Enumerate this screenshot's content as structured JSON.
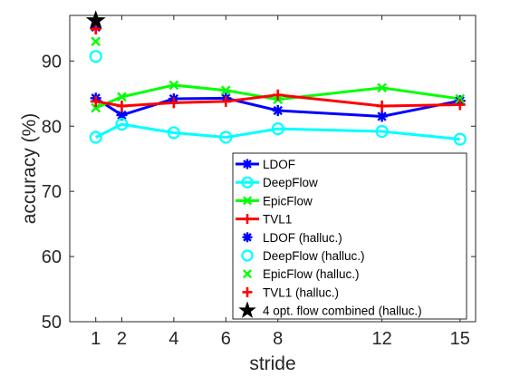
{
  "chart_data": {
    "type": "line",
    "xlabel": "stride",
    "ylabel": "accuracy (%)",
    "xlim": [
      0,
      15.6
    ],
    "ylim": [
      50,
      97
    ],
    "xticks": [
      1,
      2,
      4,
      6,
      8,
      12,
      15
    ],
    "yticks": [
      50,
      60,
      70,
      80,
      90
    ],
    "grid": false,
    "legend_position": "bottom-right",
    "x": [
      1,
      2,
      4,
      6,
      8,
      12,
      15
    ],
    "series": [
      {
        "name": "LDOF",
        "color": "#0000ff",
        "marker": "asterisk",
        "values": [
          84.3,
          81.7,
          84.2,
          84.3,
          82.4,
          81.5,
          83.9
        ]
      },
      {
        "name": "DeepFlow",
        "color": "#00ffff",
        "marker": "circle",
        "values": [
          78.3,
          80.3,
          79.0,
          78.3,
          79.6,
          79.2,
          78.0
        ]
      },
      {
        "name": "EpicFlow",
        "color": "#00ff00",
        "marker": "x",
        "values": [
          82.8,
          84.5,
          86.3,
          85.5,
          84.1,
          85.9,
          84.2
        ]
      },
      {
        "name": "TVL1",
        "color": "#ff0000",
        "marker": "plus",
        "values": [
          83.8,
          83.1,
          83.6,
          83.8,
          84.8,
          83.1,
          83.3
        ]
      }
    ],
    "halluc_points": [
      {
        "name": "LDOF (halluc.)",
        "color": "#0000ff",
        "marker": "asterisk",
        "x": 1,
        "y": 95.2
      },
      {
        "name": "DeepFlow (halluc.)",
        "color": "#00ffff",
        "marker": "circle",
        "x": 1,
        "y": 90.7
      },
      {
        "name": "EpicFlow (halluc.)",
        "color": "#00ff00",
        "marker": "x",
        "x": 1,
        "y": 93.0
      },
      {
        "name": "TVL1 (halluc.)",
        "color": "#ff0000",
        "marker": "plus",
        "x": 1,
        "y": 94.9
      },
      {
        "name": "4 opt. flow combined (halluc.)",
        "color": "#000000",
        "marker": "star",
        "x": 1,
        "y": 96.2
      }
    ]
  }
}
